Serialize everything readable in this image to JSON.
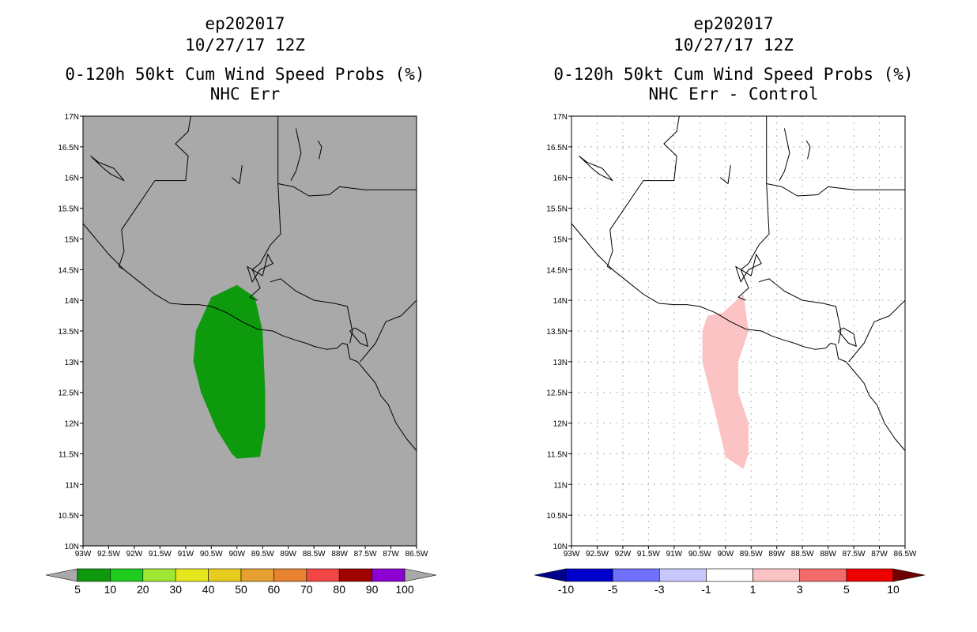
{
  "panels": [
    {
      "storm": "ep202017",
      "datetime": "10/27/17 12Z",
      "product": "0-120h 50kt Cum Wind Speed Probs (%)",
      "subtitle": "NHC Err",
      "background": "#a9a9a9",
      "gridlines": false,
      "region": {
        "fill": "#0d9a0d",
        "value_range": "5-10",
        "polygon": [
          [
            -90.0,
            14.25
          ],
          [
            -89.65,
            14.05
          ],
          [
            -89.5,
            13.5
          ],
          [
            -89.45,
            12.5
          ],
          [
            -89.45,
            11.95
          ],
          [
            -89.55,
            11.45
          ],
          [
            -90.0,
            11.42
          ],
          [
            -90.1,
            11.5
          ],
          [
            -90.4,
            11.9
          ],
          [
            -90.7,
            12.5
          ],
          [
            -90.85,
            13.0
          ],
          [
            -90.8,
            13.5
          ],
          [
            -90.5,
            14.05
          ]
        ]
      },
      "colorbar": {
        "labels": [
          "5",
          "10",
          "20",
          "30",
          "40",
          "50",
          "60",
          "70",
          "80",
          "90",
          "100"
        ],
        "colors": [
          "#0d9a0d",
          "#1ecb1e",
          "#a0e632",
          "#e6e61e",
          "#e6cc1e",
          "#e6a032",
          "#e68232",
          "#f04646",
          "#a00000",
          "#8c00d2"
        ],
        "under_color": "#a9a9a9",
        "over_color": "#a9a9a9"
      }
    },
    {
      "storm": "ep202017",
      "datetime": "10/27/17 12Z",
      "product": "0-120h 50kt Cum Wind Speed Probs (%)",
      "subtitle": "NHC Err - Control",
      "background": "#ffffff",
      "gridlines": true,
      "region": {
        "fill": "#fbc3c3",
        "value_range": "1-3",
        "polygon": [
          [
            -89.65,
            14.1
          ],
          [
            -89.55,
            13.5
          ],
          [
            -89.75,
            13.0
          ],
          [
            -89.75,
            12.5
          ],
          [
            -89.55,
            12.0
          ],
          [
            -89.55,
            11.5
          ],
          [
            -89.65,
            11.25
          ],
          [
            -90.0,
            11.45
          ],
          [
            -90.15,
            12.0
          ],
          [
            -90.3,
            12.5
          ],
          [
            -90.45,
            13.0
          ],
          [
            -90.45,
            13.5
          ],
          [
            -90.35,
            13.75
          ],
          [
            -90.05,
            13.8
          ]
        ]
      },
      "colorbar": {
        "labels": [
          "-10",
          "-5",
          "-3",
          "-1",
          "1",
          "3",
          "5",
          "10"
        ],
        "colors": [
          "#0000cd",
          "#7070ff",
          "#c8c8ff",
          "#ffffff",
          "#fbc3c3",
          "#f26a6a",
          "#ee0000"
        ],
        "under_color": "#00008b",
        "over_color": "#6e0000"
      }
    }
  ],
  "axes": {
    "lon_range": [
      -93,
      -86.5
    ],
    "lat_range": [
      10,
      17
    ],
    "lon_ticks": [
      "93W",
      "92.5W",
      "92W",
      "91.5W",
      "91W",
      "90.5W",
      "90W",
      "89.5W",
      "89W",
      "88.5W",
      "88W",
      "87.5W",
      "87W",
      "86.5W"
    ],
    "lat_ticks": [
      "10N",
      "10.5N",
      "11N",
      "11.5N",
      "12N",
      "12.5N",
      "13N",
      "13.5N",
      "14N",
      "14.5N",
      "15N",
      "15.5N",
      "16N",
      "16.5N",
      "17N"
    ]
  }
}
